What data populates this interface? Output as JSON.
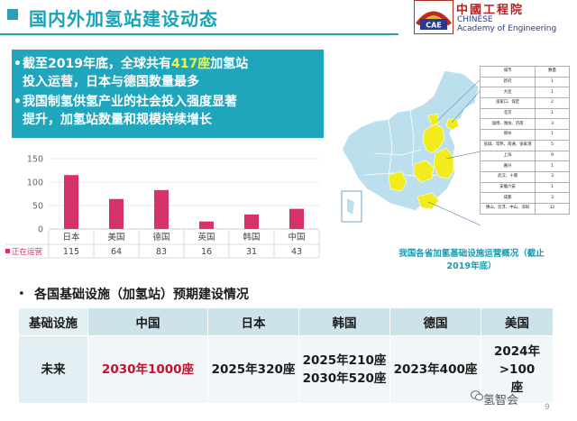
{
  "header": {
    "title": "国内外加氢站建设动态",
    "logo_chars": "中國工程院",
    "logo_badge": "CAE",
    "logo_en_line1": "CHINESE",
    "logo_en_line2": "Academy of Engineering"
  },
  "summary": {
    "bullet1_pre": "截至2019年底，全球共有",
    "bullet1_highlight": "417座",
    "bullet1_post": "加氢站",
    "bullet1_line2": "投入运营，日本与德国数量最多",
    "bullet2_line1": "我国制氢供氢产业的社会投入强度显著",
    "bullet2_line2": "提升，加氢站数量和规模持续增长",
    "highlight_color": "#f7f73a"
  },
  "chart_data": {
    "type": "bar",
    "categories": [
      "日本",
      "美国",
      "德国",
      "英国",
      "韩国",
      "中国"
    ],
    "series": [
      {
        "name": "正在运营",
        "values": [
          115,
          64,
          83,
          16,
          31,
          43
        ]
      }
    ],
    "yticks": [
      0,
      50,
      100,
      150
    ],
    "ylim": [
      0,
      150
    ],
    "bar_color": "#d6336c"
  },
  "map": {
    "table_header": [
      "城市",
      "数量"
    ],
    "table_rows": [
      [
        "新究",
        "1"
      ],
      [
        "大连",
        "1"
      ],
      [
        "张家口、保定",
        "2"
      ],
      [
        "北京",
        "1"
      ],
      [
        "淄博、潍坊、济南",
        "3"
      ],
      [
        "郑州",
        "1"
      ],
      [
        "盐城、常熟、南通、张家港",
        "5"
      ],
      [
        "上海",
        "9"
      ],
      [
        "嘉兴",
        "1"
      ],
      [
        "武汉、十堰",
        "3"
      ],
      [
        "安徽六安",
        "1"
      ],
      [
        "成都",
        "3"
      ],
      [
        "佛山、云浮、中山、深圳",
        "12"
      ]
    ],
    "caption_line1": "我国各省加氢基础设施运营概况（截止",
    "caption_line2": "2019年底）"
  },
  "section2": {
    "title": "各国基础设施（加氢站）预期建设情况",
    "headers": [
      "基础设施",
      "中国",
      "日本",
      "韩国",
      "德国",
      "美国"
    ],
    "row_label": "未来",
    "china": "2030年1000座",
    "japan": "2025年320座",
    "korea_line1": "2025年210座",
    "korea_line2": "2030年520座",
    "germany": "2023年400座",
    "usa_line1": "2024年>100",
    "usa_line2": "座"
  },
  "footer": {
    "watermark": "氢智会",
    "page_number": "9"
  }
}
